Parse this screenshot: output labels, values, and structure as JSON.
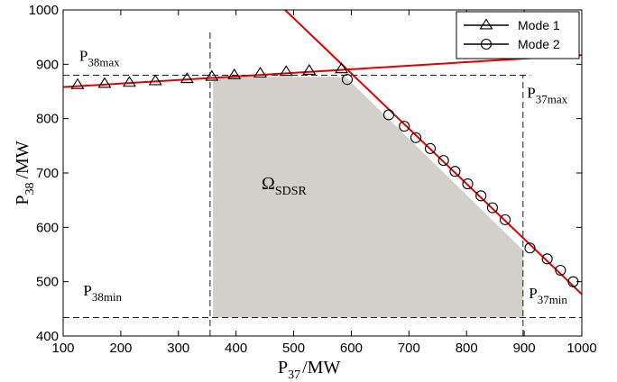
{
  "chart_data": {
    "type": "line",
    "xlabel": {
      "main": "P",
      "sub": "37",
      "unit": "/MW"
    },
    "ylabel": {
      "main": "P",
      "sub": "38",
      "unit": "/MW"
    },
    "xlim": [
      100,
      1000
    ],
    "ylim": [
      400,
      1000
    ],
    "xticks": [
      100,
      200,
      300,
      400,
      500,
      600,
      700,
      800,
      900,
      1000
    ],
    "yticks": [
      400,
      500,
      600,
      700,
      800,
      900,
      1000
    ],
    "grid": false,
    "legend_position": "top-right",
    "colors": {
      "red": "#e00000",
      "region": "#d3d0cb",
      "marker": "#000000"
    },
    "series": [
      {
        "name": "Mode 1",
        "marker": "triangle",
        "x": [
          125,
          172,
          215,
          260,
          315,
          358,
          397,
          442,
          487,
          527,
          583
        ],
        "y": [
          862,
          864,
          866,
          869,
          873,
          877,
          880,
          883,
          886,
          888,
          891
        ]
      },
      {
        "name": "Mode 2",
        "marker": "circle",
        "x": [
          593,
          665,
          692,
          712,
          737,
          760,
          780,
          802,
          825,
          845,
          867,
          910,
          940,
          963,
          985
        ],
        "y": [
          872,
          807,
          786,
          765,
          745,
          723,
          703,
          680,
          658,
          636,
          614,
          562,
          542,
          521,
          500
        ]
      }
    ],
    "red_lines": [
      {
        "x": [
          100,
          1000
        ],
        "y": [
          858,
          917
        ]
      },
      {
        "x": [
          485,
          1000
        ],
        "y": [
          1000,
          477
        ]
      }
    ],
    "dashed_lines": [
      {
        "x": [
          100,
          910
        ],
        "y": [
          880,
          880
        ]
      },
      {
        "x": [
          100,
          1000
        ],
        "y": [
          434,
          434
        ]
      },
      {
        "x": [
          355,
          355
        ],
        "y": [
          400,
          960
        ]
      },
      {
        "x": [
          898,
          898
        ],
        "y": [
          400,
          880
        ]
      }
    ],
    "region": {
      "label": {
        "main": "Ω",
        "sub": "SDSR"
      },
      "x": [
        360,
        360,
        590,
        898,
        898
      ],
      "y": [
        434,
        877,
        877,
        558,
        434
      ]
    },
    "annotations": [
      {
        "id": "p38max",
        "main": "P",
        "sub": "38max",
        "x": 128,
        "y": 906
      },
      {
        "id": "p37max",
        "main": "P",
        "sub": "37max",
        "x": 905,
        "y": 838
      },
      {
        "id": "p38min",
        "main": "P",
        "sub": "38min",
        "x": 135,
        "y": 475
      },
      {
        "id": "p37min",
        "main": "P",
        "sub": "37min",
        "x": 908,
        "y": 470
      }
    ]
  }
}
